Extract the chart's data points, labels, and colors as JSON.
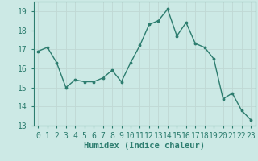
{
  "x": [
    0,
    1,
    2,
    3,
    4,
    5,
    6,
    7,
    8,
    9,
    10,
    11,
    12,
    13,
    14,
    15,
    16,
    17,
    18,
    19,
    20,
    21,
    22,
    23
  ],
  "y": [
    16.9,
    17.1,
    16.3,
    15.0,
    15.4,
    15.3,
    15.3,
    15.5,
    15.9,
    15.3,
    16.3,
    17.2,
    18.3,
    18.5,
    19.1,
    17.7,
    18.4,
    17.3,
    17.1,
    16.5,
    14.4,
    14.7,
    13.8,
    13.3
  ],
  "xlabel": "Humidex (Indice chaleur)",
  "ylim": [
    13,
    19.5
  ],
  "xlim": [
    -0.5,
    23.5
  ],
  "yticks": [
    13,
    14,
    15,
    16,
    17,
    18,
    19
  ],
  "xticks": [
    0,
    1,
    2,
    3,
    4,
    5,
    6,
    7,
    8,
    9,
    10,
    11,
    12,
    13,
    14,
    15,
    16,
    17,
    18,
    19,
    20,
    21,
    22,
    23
  ],
  "line_color": "#2d7d6f",
  "marker_color": "#2d7d6f",
  "bg_color": "#cce9e5",
  "grid_color": "#c0d8d4",
  "xlabel_fontsize": 7.5,
  "tick_fontsize": 7
}
